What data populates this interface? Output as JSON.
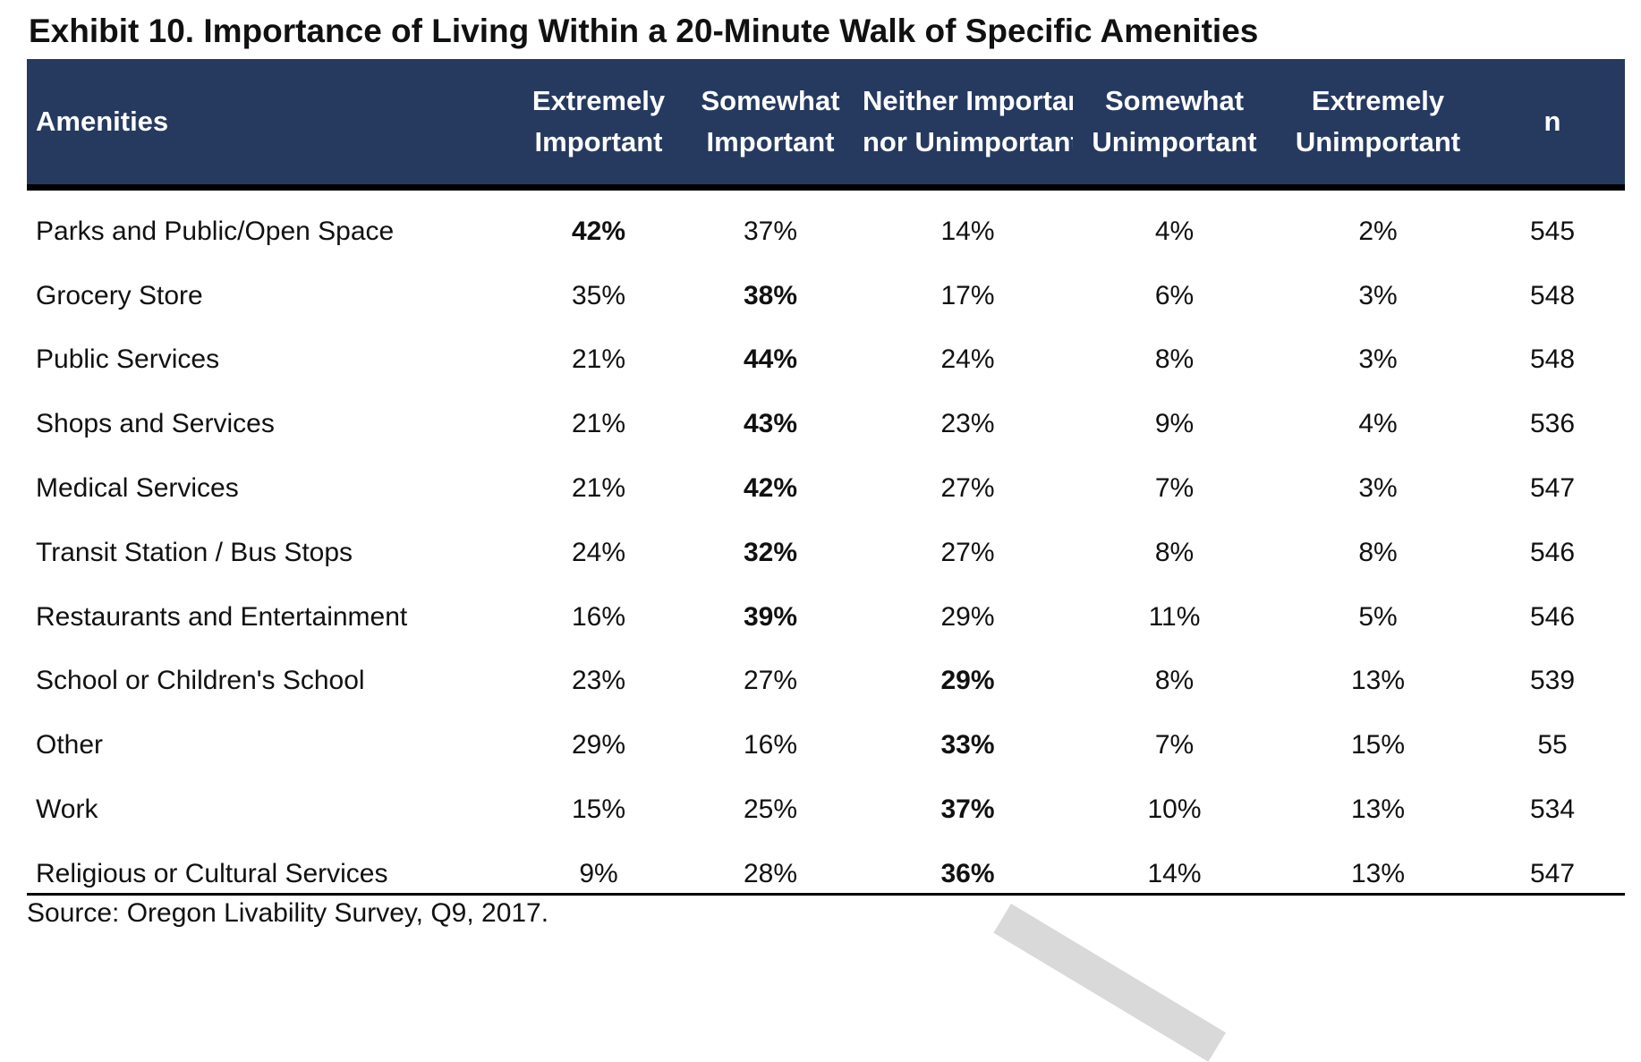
{
  "title": "Exhibit 10. Importance of Living Within a 20-Minute Walk of Specific Amenities",
  "header": {
    "col0": "Amenities",
    "col1": [
      "Extremely",
      "Important"
    ],
    "col2": [
      "Somewhat",
      "Important"
    ],
    "col3": [
      "Neither Importan",
      "nor Unimportant"
    ],
    "col4": [
      "Somewhat",
      "Unimportant"
    ],
    "col5": [
      "Extremely",
      "Unimportant"
    ],
    "col6": "n"
  },
  "rows": [
    {
      "label": "Parks and Public/Open Space",
      "values": [
        "42%",
        "37%",
        "14%",
        "4%",
        "2%",
        "545"
      ],
      "bold_index": 0
    },
    {
      "label": "Grocery Store",
      "values": [
        "35%",
        "38%",
        "17%",
        "6%",
        "3%",
        "548"
      ],
      "bold_index": 1
    },
    {
      "label": "Public Services",
      "values": [
        "21%",
        "44%",
        "24%",
        "8%",
        "3%",
        "548"
      ],
      "bold_index": 1
    },
    {
      "label": "Shops and Services",
      "values": [
        "21%",
        "43%",
        "23%",
        "9%",
        "4%",
        "536"
      ],
      "bold_index": 1
    },
    {
      "label": "Medical Services",
      "values": [
        "21%",
        "42%",
        "27%",
        "7%",
        "3%",
        "547"
      ],
      "bold_index": 1
    },
    {
      "label": "Transit Station / Bus Stops",
      "values": [
        "24%",
        "32%",
        "27%",
        "8%",
        "8%",
        "546"
      ],
      "bold_index": 1
    },
    {
      "label": "Restaurants and Entertainment",
      "values": [
        "16%",
        "39%",
        "29%",
        "11%",
        "5%",
        "546"
      ],
      "bold_index": 1
    },
    {
      "label": "School or Children's School",
      "values": [
        "23%",
        "27%",
        "29%",
        "8%",
        "13%",
        "539"
      ],
      "bold_index": 2
    },
    {
      "label": "Other",
      "values": [
        "29%",
        "16%",
        "33%",
        "7%",
        "15%",
        "55"
      ],
      "bold_index": 2
    },
    {
      "label": "Work",
      "values": [
        "15%",
        "25%",
        "37%",
        "10%",
        "13%",
        "534"
      ],
      "bold_index": 2
    },
    {
      "label": "Religious or Cultural Services",
      "values": [
        "9%",
        "28%",
        "36%",
        "14%",
        "13%",
        "547"
      ],
      "bold_index": 2
    }
  ],
  "source": "Source: Oregon Livability Survey, Q9, 2017.",
  "colors": {
    "header_bg": "#263a60",
    "header_text": "#ffffff",
    "rule": "#000000"
  }
}
